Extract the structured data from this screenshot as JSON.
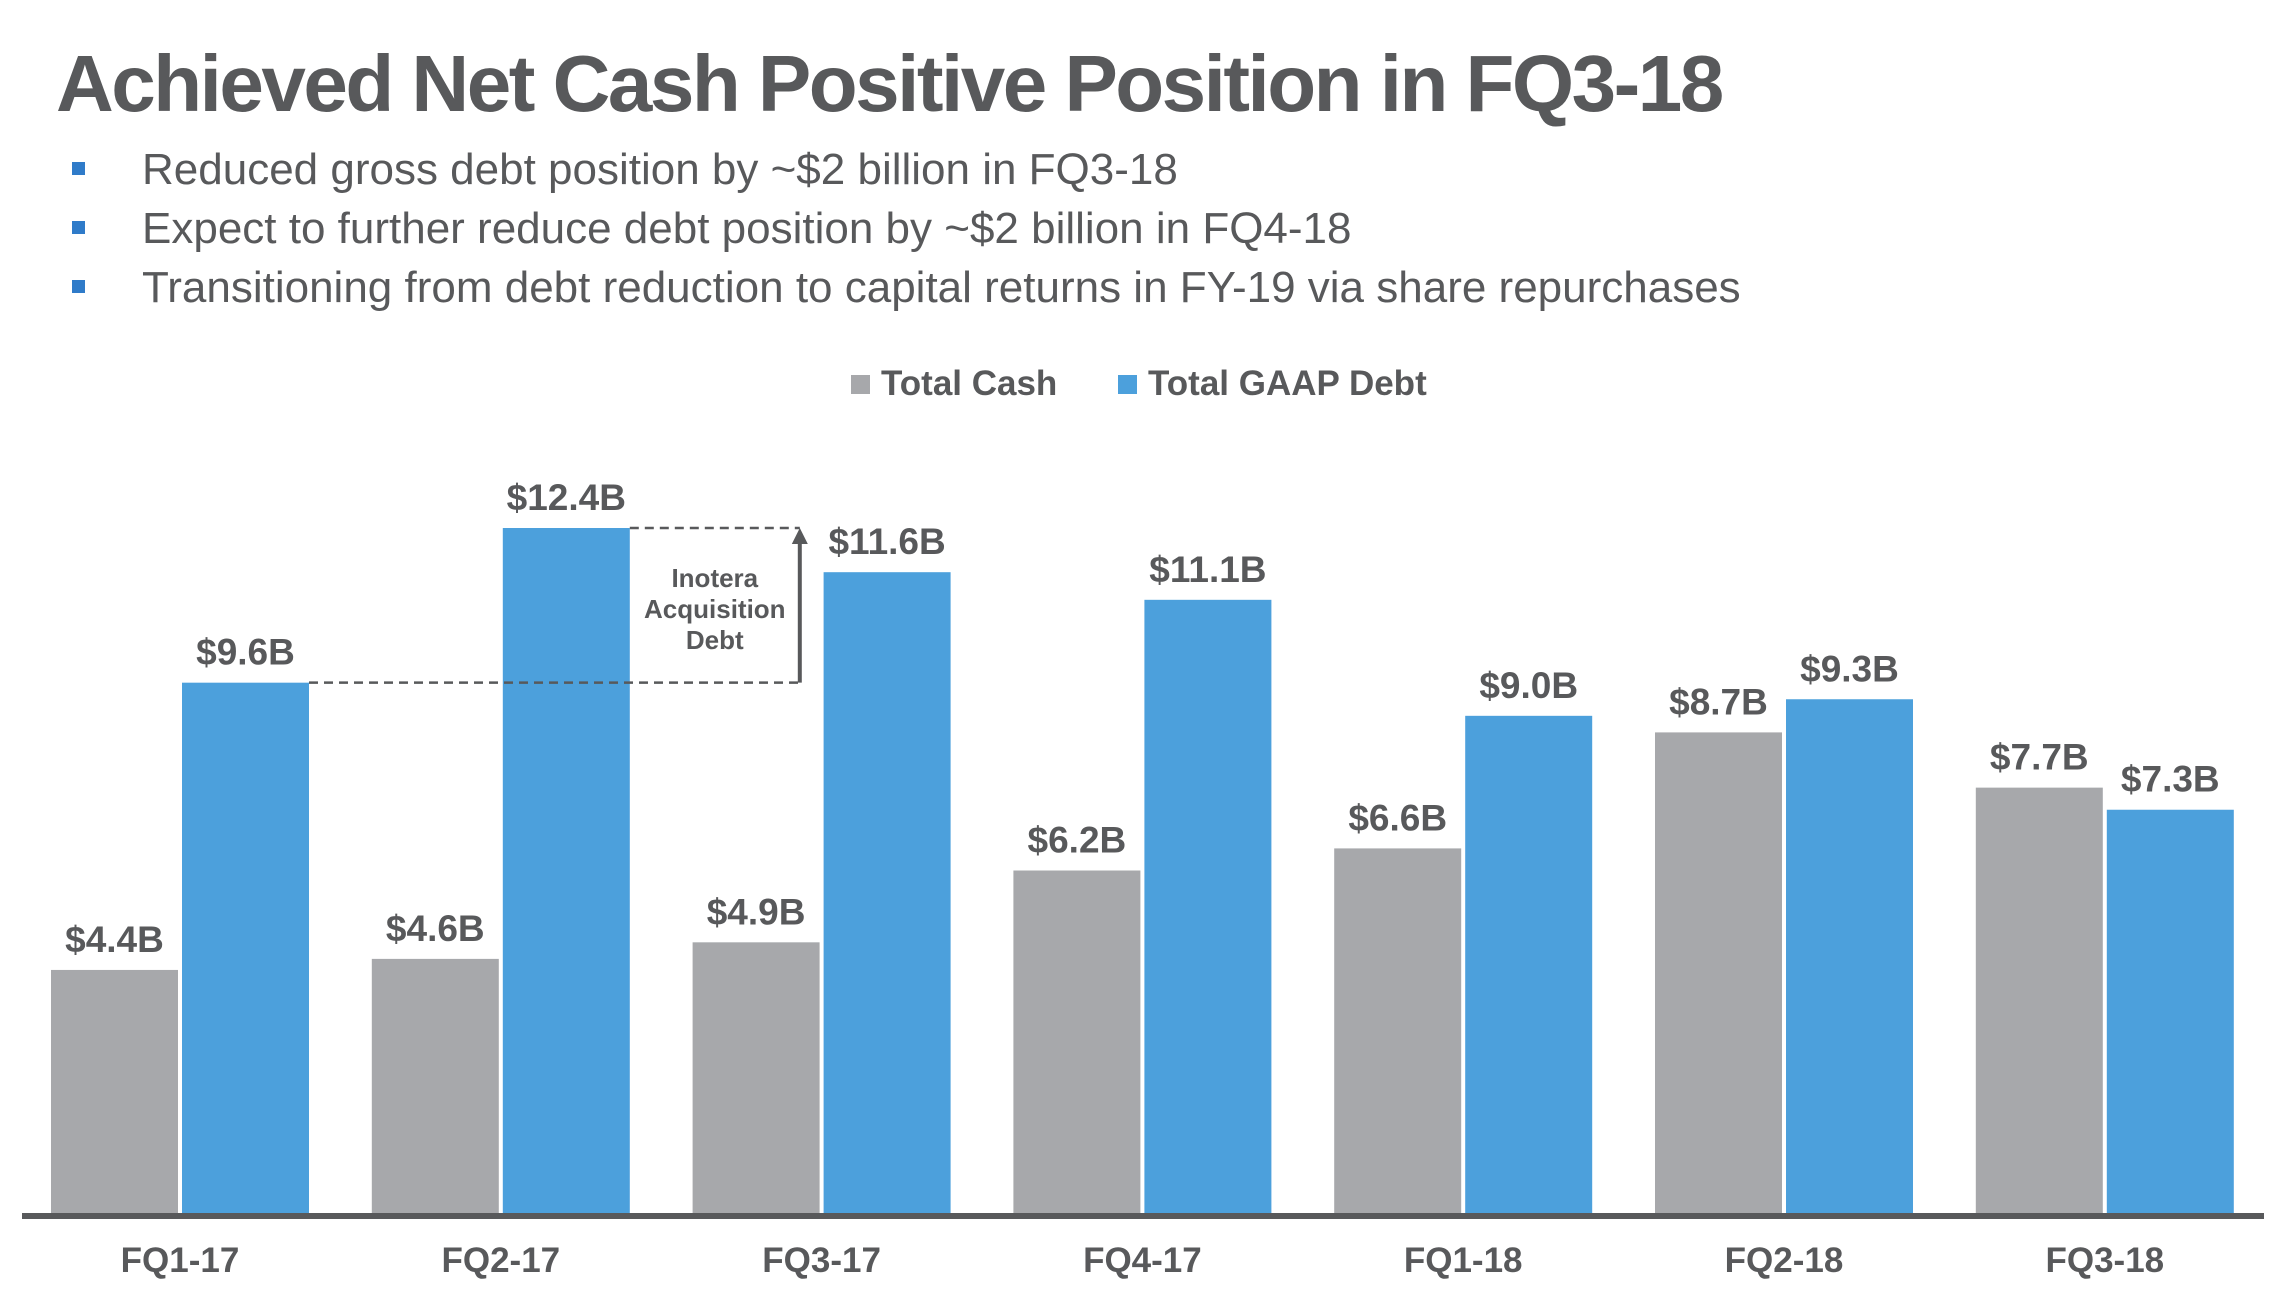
{
  "slide": {
    "title": "Achieved Net Cash Positive Position in FQ3-18",
    "bullets": [
      "Reduced gross debt position by ~$2 billion in FQ3-18",
      "Expect to further reduce debt position by ~$2 billion in FQ4-18",
      "Transitioning from debt reduction to capital returns in FY-19 via share repurchases"
    ],
    "bullet_icon": "square-bullet-icon",
    "colors": {
      "text": "#58595b",
      "bullet": "#2f7bc9",
      "cash": "#a7a8ab",
      "debt": "#4ca0dc"
    }
  },
  "chart_data": {
    "type": "bar",
    "title": "",
    "xlabel": "",
    "ylabel": "",
    "unit": "$B",
    "ylim": [
      0,
      12.4
    ],
    "grid": false,
    "legend_position": "top-center",
    "categories": [
      "FQ1-17",
      "FQ2-17",
      "FQ3-17",
      "FQ4-17",
      "FQ1-18",
      "FQ2-18",
      "FQ3-18"
    ],
    "series": [
      {
        "name": "Total Cash",
        "color": "#a7a8ab",
        "values": [
          4.4,
          4.6,
          4.9,
          6.2,
          6.6,
          8.7,
          7.7
        ],
        "labels": [
          "$4.4B",
          "$4.6B",
          "$4.9B",
          "$6.2B",
          "$6.6B",
          "$8.7B",
          "$7.7B"
        ]
      },
      {
        "name": "Total GAAP Debt",
        "color": "#4ca0dc",
        "values": [
          9.6,
          12.4,
          11.6,
          11.1,
          9.0,
          9.3,
          7.3
        ],
        "labels": [
          "$9.6B",
          "$12.4B",
          "$11.6B",
          "$11.1B",
          "$9.0B",
          "$9.3B",
          "$7.3B"
        ]
      }
    ],
    "annotations": [
      {
        "text_lines": [
          "Inotera",
          "Acquisition",
          "Debt"
        ],
        "from_value": 9.6,
        "to_value": 12.4,
        "from_category": "FQ1-17",
        "to_category": "FQ2-17",
        "style": "dashed-bracket-with-up-arrow"
      }
    ]
  }
}
